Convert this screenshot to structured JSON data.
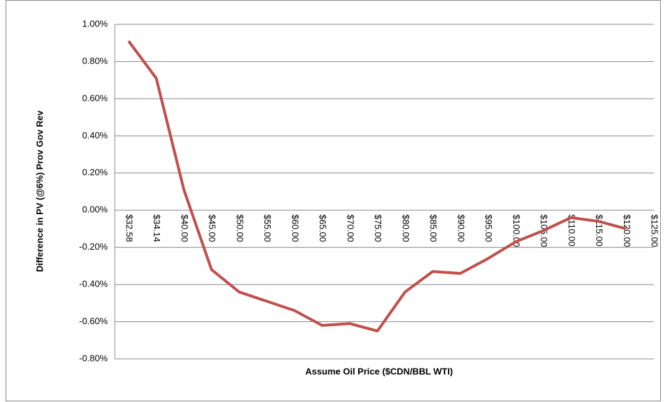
{
  "chart_data": {
    "type": "line",
    "x_label": "Assume Oil Price ($CDN/BBL WTI)",
    "y_label": "Difference in PV (@6%) Prov Gov Rev",
    "categories": [
      "$32.58",
      "$34.14",
      "$40.00",
      "$45.00",
      "$50.00",
      "$55.00",
      "$60.00",
      "$65.00",
      "$70.00",
      "$75.00",
      "$80.00",
      "$85.00",
      "$90.00",
      "$95.00",
      "$100.00",
      "$105.00",
      "$110.00",
      "$115.00",
      "$120.00",
      "$125.00"
    ],
    "series": [
      {
        "name": "Difference in PV",
        "color": "#c0504d",
        "values": [
          0.91,
          0.71,
          0.11,
          -0.32,
          -0.44,
          -0.49,
          -0.54,
          -0.62,
          -0.61,
          -0.65,
          -0.44,
          -0.33,
          -0.34,
          -0.26,
          -0.17,
          -0.11,
          -0.04,
          -0.06,
          -0.1,
          null
        ]
      }
    ],
    "ylim": [
      -0.8,
      1.0
    ],
    "yticks": [
      {
        "value": -0.8,
        "label": "-0.80%"
      },
      {
        "value": -0.6,
        "label": "-0.60%"
      },
      {
        "value": -0.4,
        "label": "-0.40%"
      },
      {
        "value": -0.2,
        "label": "-0.20%"
      },
      {
        "value": 0,
        "label": "0.00%"
      },
      {
        "value": 0.2,
        "label": "0.20%"
      },
      {
        "value": 0.4,
        "label": "0.40%"
      },
      {
        "value": 0.6,
        "label": "0.60%"
      },
      {
        "value": 0.8,
        "label": "0.80%"
      },
      {
        "value": 1.0,
        "label": "1.00%"
      }
    ],
    "grid": true
  }
}
